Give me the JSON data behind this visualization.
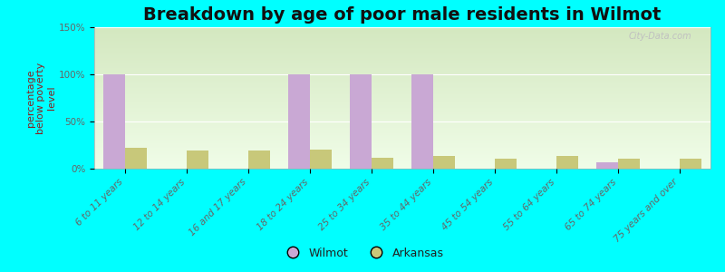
{
  "title": "Breakdown by age of poor male residents in Wilmot",
  "categories": [
    "6 to 11 years",
    "12 to 14 years",
    "16 and 17 years",
    "18 to 24 years",
    "25 to 34 years",
    "35 to 44 years",
    "45 to 54 years",
    "55 to 64 years",
    "65 to 74 years",
    "75 years and over"
  ],
  "wilmot_values": [
    100,
    0,
    0,
    100,
    100,
    100,
    0,
    0,
    7,
    0
  ],
  "arkansas_values": [
    22,
    19,
    19,
    20,
    12,
    13,
    11,
    13,
    11,
    11
  ],
  "wilmot_color": "#c9a8d4",
  "arkansas_color": "#c8c87a",
  "background_color": "#00ffff",
  "grad_top": "#d4e8c0",
  "grad_bottom": "#f0fde8",
  "ylabel": "percentage\nbelow poverty\nlevel",
  "ylim": [
    0,
    150
  ],
  "yticks": [
    0,
    50,
    100,
    150
  ],
  "ytick_labels": [
    "0%",
    "50%",
    "100%",
    "150%"
  ],
  "bar_width": 0.35,
  "title_fontsize": 14,
  "axis_label_fontsize": 8,
  "tick_fontsize": 7.5,
  "legend_labels": [
    "Wilmot",
    "Arkansas"
  ],
  "watermark": "City-Data.com"
}
